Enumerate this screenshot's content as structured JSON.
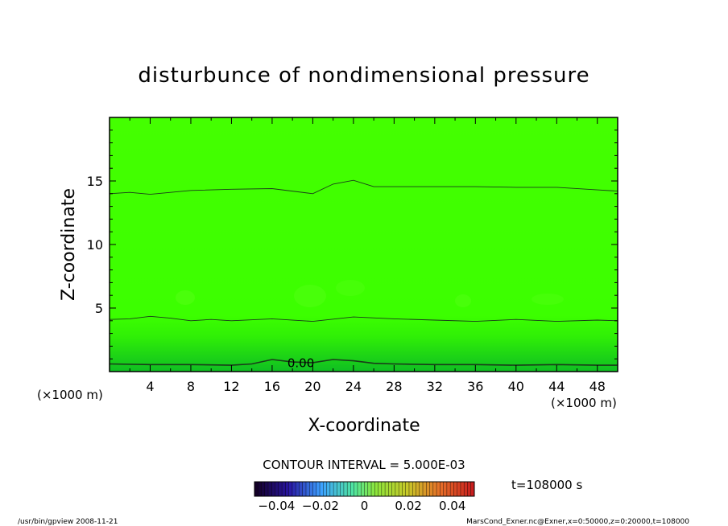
{
  "chart_data": {
    "type": "contour",
    "title": "disturbunce of nondimensional pressure",
    "xlabel": "X-coordinate",
    "ylabel": "Z-coordinate",
    "x_unit_left": "(×1000 m)",
    "x_unit_right": "(×1000 m)",
    "xlim": [
      0,
      50
    ],
    "ylim": [
      0,
      20
    ],
    "xticks": [
      4,
      8,
      12,
      16,
      20,
      24,
      28,
      32,
      36,
      40,
      44,
      48
    ],
    "xtick_labels": [
      "4",
      "8",
      "12",
      "16",
      "20",
      "24",
      "28",
      "32",
      "36",
      "40",
      "44",
      "48"
    ],
    "yticks": [
      5,
      10,
      15
    ],
    "ytick_labels": [
      "5",
      "10",
      "15"
    ],
    "contour_interval_text": "CONTOUR INTERVAL = 5.000E-03",
    "contour_label": "0.00",
    "contours": [
      {
        "level": 0.0,
        "x": [
          0,
          4,
          8,
          12,
          14,
          16,
          18,
          20,
          22,
          24,
          26,
          28,
          32,
          36,
          40,
          44,
          48,
          50
        ],
        "y": [
          0.6,
          0.55,
          0.55,
          0.5,
          0.6,
          0.95,
          0.75,
          0.7,
          0.95,
          0.85,
          0.65,
          0.6,
          0.55,
          0.55,
          0.5,
          0.55,
          0.5,
          0.5
        ]
      },
      {
        "level": 0.005,
        "x": [
          0,
          2,
          4,
          6,
          8,
          10,
          12,
          16,
          20,
          24,
          28,
          32,
          36,
          40,
          44,
          48,
          50
        ],
        "y": [
          4.1,
          4.15,
          4.35,
          4.2,
          4.0,
          4.1,
          4.0,
          4.15,
          3.95,
          4.3,
          4.15,
          4.05,
          3.95,
          4.1,
          3.95,
          4.05,
          4.0
        ]
      },
      {
        "level": 0.01,
        "x": [
          0,
          2,
          4,
          8,
          12,
          16,
          20,
          22,
          24,
          26,
          28,
          32,
          36,
          40,
          44,
          48,
          50
        ],
        "y": [
          14.0,
          14.1,
          13.95,
          14.25,
          14.35,
          14.4,
          14.0,
          14.75,
          15.05,
          14.55,
          14.55,
          14.55,
          14.55,
          14.5,
          14.5,
          14.3,
          14.2
        ]
      }
    ],
    "colorbar": {
      "range": [
        -0.05,
        0.05
      ],
      "tick_values": [
        -0.04,
        -0.02,
        0,
        0.02,
        0.04
      ],
      "tick_labels": [
        "−0.04",
        "−0.02",
        "0",
        "0.02",
        "0.04"
      ]
    },
    "colors": {
      "fill_main": "#3cff00",
      "fill_bottom": "#12c41e",
      "fill_top": "#44ff00"
    }
  },
  "time_text": "t=108000 s",
  "footer_left": "/usr/bin/gpview  2008-11-21",
  "footer_right": "MarsCond_Exner.nc@Exner,x=0:50000,z=0:20000,t=108000"
}
